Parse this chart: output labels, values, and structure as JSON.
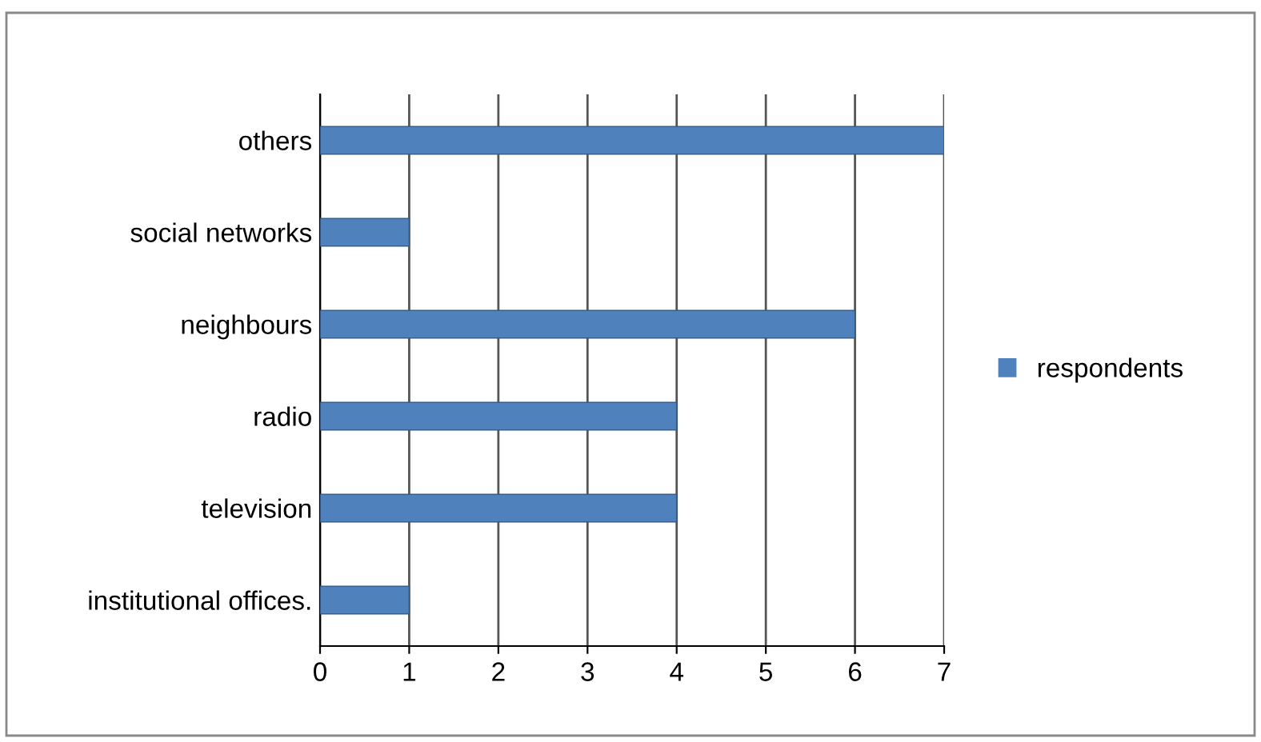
{
  "chart_data": {
    "type": "bar",
    "orientation": "horizontal",
    "categories": [
      "others",
      "social networks",
      "neighbours",
      "radio",
      "television",
      "institutional offices."
    ],
    "series": [
      {
        "name": "respondents",
        "color": "#4f81bd",
        "values": [
          7,
          1,
          6,
          4,
          4,
          1
        ]
      }
    ],
    "xlim": [
      0,
      7
    ],
    "xticks": [
      0,
      1,
      2,
      3,
      4,
      5,
      6,
      7
    ],
    "grid": "x",
    "legend": "right"
  }
}
